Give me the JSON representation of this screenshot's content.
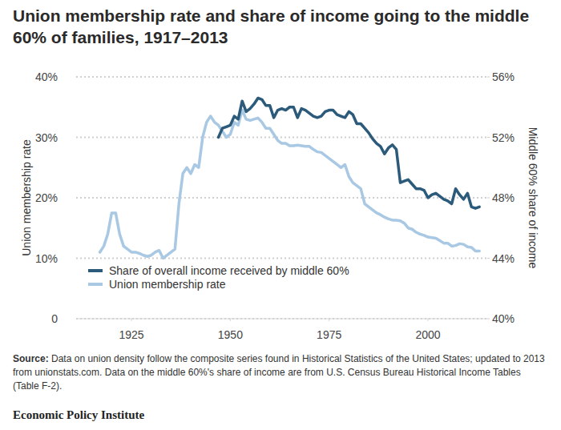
{
  "chart_data": {
    "type": "line",
    "title": "Union membership rate and share of income going to the middle 60% of families, 1917–2013",
    "y_label": "Union membership rate",
    "y2_label": "Middle 60% share of income",
    "source_label": "Source:",
    "source": "Data on union density follow the composite series found in Historical Statistics of the United States; updated to 2013 from unionstats.com. Data on the middle 60%'s share of income are from U.S. Census Bureau Historical Income Tables (Table F-2).",
    "credit": "Economic Policy Institute",
    "grid": true,
    "legend": "lower left",
    "xlim": [
      1911,
      2015
    ],
    "xticks": [
      1925,
      1950,
      1975,
      2000
    ],
    "ylim": [
      0,
      40
    ],
    "yticks": [
      0,
      {
        "value": 10,
        "label": "10%"
      },
      {
        "value": 20,
        "label": "20%"
      },
      {
        "value": 30,
        "label": "30%"
      },
      {
        "value": 40,
        "label": "40%"
      }
    ],
    "y2lim": [
      40,
      56
    ],
    "y2ticks": [
      {
        "value": 40,
        "label": "40%"
      },
      {
        "value": 44,
        "label": "44%"
      },
      {
        "value": 48,
        "label": "48%"
      },
      {
        "value": 52,
        "label": "52%"
      },
      {
        "value": 56,
        "label": "56%"
      }
    ],
    "x": [
      1917,
      1918,
      1919,
      1920,
      1921,
      1922,
      1923,
      1924,
      1925,
      1926,
      1927,
      1928,
      1929,
      1930,
      1931,
      1932,
      1933,
      1934,
      1935,
      1936,
      1937,
      1938,
      1939,
      1940,
      1941,
      1942,
      1943,
      1944,
      1945,
      1946,
      1947,
      1948,
      1949,
      1950,
      1951,
      1952,
      1953,
      1954,
      1955,
      1956,
      1957,
      1958,
      1959,
      1960,
      1961,
      1962,
      1963,
      1964,
      1965,
      1966,
      1967,
      1968,
      1969,
      1970,
      1971,
      1972,
      1973,
      1974,
      1975,
      1976,
      1977,
      1978,
      1979,
      1980,
      1981,
      1982,
      1983,
      1984,
      1985,
      1986,
      1987,
      1988,
      1989,
      1990,
      1991,
      1992,
      1993,
      1994,
      1995,
      1996,
      1997,
      1998,
      1999,
      2000,
      2001,
      2002,
      2003,
      2004,
      2005,
      2006,
      2007,
      2008,
      2009,
      2010,
      2011,
      2012,
      2013
    ],
    "series": [
      {
        "name": "Share of overall income received by middle 60%",
        "color": "#2b5a7a",
        "axis": "y2",
        "values": [
          null,
          null,
          null,
          null,
          null,
          null,
          null,
          null,
          null,
          null,
          null,
          null,
          null,
          null,
          null,
          null,
          null,
          null,
          null,
          null,
          null,
          null,
          null,
          null,
          null,
          null,
          null,
          null,
          null,
          null,
          52.0,
          52.6,
          52.7,
          52.8,
          53.4,
          53.2,
          54.4,
          53.7,
          53.9,
          54.2,
          54.6,
          54.5,
          54.1,
          54.1,
          53.3,
          53.8,
          53.9,
          53.8,
          54.0,
          54.0,
          53.3,
          53.9,
          53.8,
          53.6,
          53.4,
          53.3,
          53.4,
          53.7,
          53.8,
          53.8,
          53.5,
          53.4,
          53.3,
          53.7,
          53.5,
          52.9,
          52.9,
          52.6,
          52.3,
          51.9,
          51.6,
          51.4,
          50.9,
          51.3,
          51.5,
          51.2,
          49.0,
          49.1,
          49.2,
          48.9,
          48.6,
          48.6,
          48.5,
          48.0,
          48.2,
          48.3,
          48.1,
          47.9,
          47.8,
          47.6,
          48.6,
          48.2,
          47.9,
          48.3,
          47.4,
          47.3,
          47.4
        ]
      },
      {
        "name": "Union membership rate",
        "color": "#a8c8e4",
        "values": [
          11,
          12,
          14,
          17.5,
          17.5,
          14,
          12,
          11.5,
          11,
          11,
          10.8,
          10.5,
          10.3,
          10.5,
          11,
          11.3,
          10,
          10.5,
          11,
          11.5,
          19,
          24,
          25,
          24,
          25.5,
          25,
          30,
          32.5,
          33.5,
          32.5,
          32,
          31,
          30,
          30.5,
          32.5,
          32,
          34.5,
          33,
          32.8,
          33,
          33.2,
          32.5,
          31.5,
          31.5,
          30.5,
          29.5,
          29,
          29,
          28.6,
          28.6,
          28.7,
          28.6,
          28.5,
          28.5,
          28,
          27.6,
          27.5,
          27,
          26.5,
          26,
          25.5,
          25,
          25.5,
          23.5,
          22.5,
          22,
          21.5,
          19,
          18.5,
          18,
          17.5,
          17.2,
          16.8,
          16.5,
          16.3,
          16.3,
          16.2,
          15.8,
          15,
          14.8,
          14.3,
          14,
          13.8,
          13.5,
          13.4,
          13.3,
          12.9,
          12.5,
          12.5,
          12,
          12.1,
          12.4,
          12.3,
          11.9,
          11.8,
          11.2,
          11.2
        ]
      }
    ]
  }
}
